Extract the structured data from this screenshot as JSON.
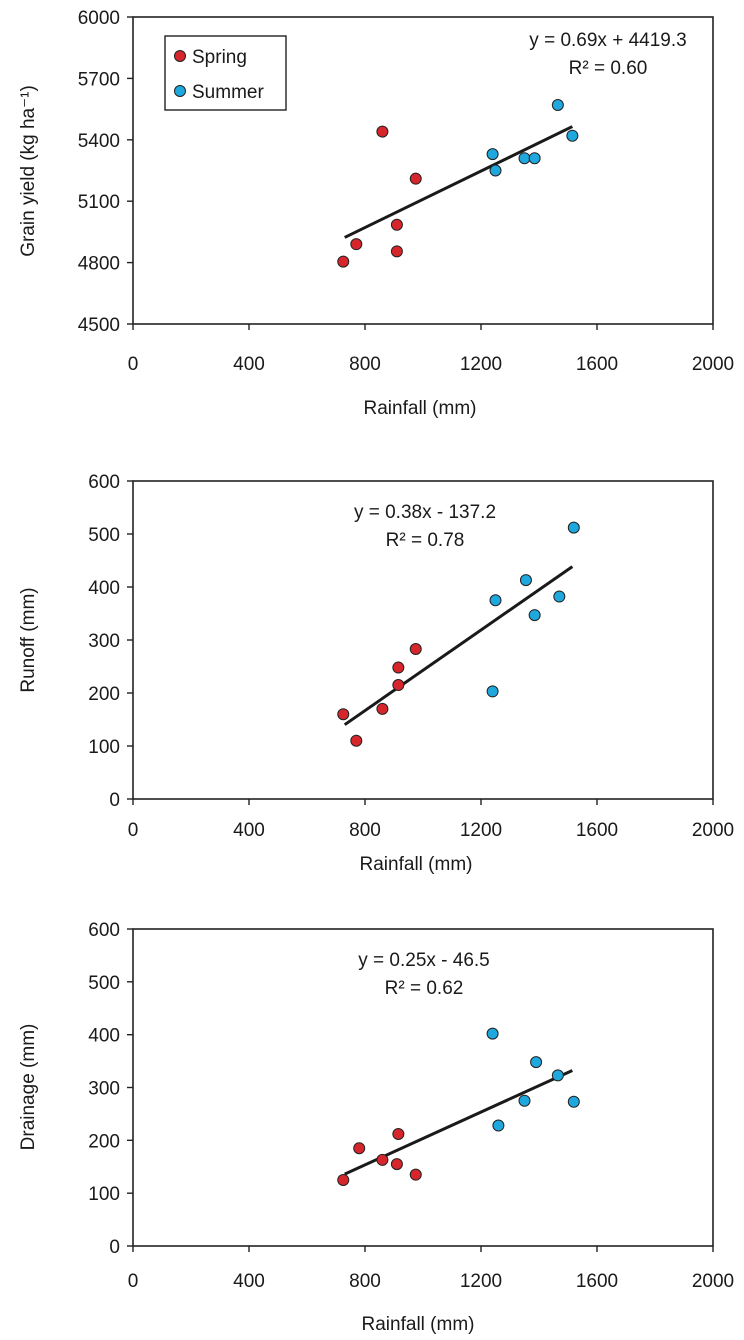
{
  "colors": {
    "spring": "#d7262b",
    "summer": "#1fa8de"
  },
  "legend": {
    "spring": "Spring",
    "summer": "Summer"
  },
  "chart_data": [
    {
      "type": "scatter",
      "xlabel": "Rainfall (mm)",
      "ylabel": "Grain yield (kg ha⁻¹)",
      "xlim": [
        0,
        2000
      ],
      "ylim": [
        4500,
        6000
      ],
      "xticks": [
        "0",
        "400",
        "800",
        "1200",
        "1600",
        "2000"
      ],
      "yticks": [
        "4500",
        "4800",
        "5100",
        "5400",
        "5700",
        "6000"
      ],
      "equation": "y = 0.69x + 4419.3",
      "r2": "R² = 0.60",
      "trend": {
        "slope": 0.69,
        "intercept": 4419.3,
        "x_range": [
          730,
          1515
        ]
      },
      "series": [
        {
          "name": "Spring",
          "x": [
            725,
            770,
            860,
            910,
            910,
            975
          ],
          "y": [
            4805,
            4890,
            5440,
            4985,
            4855,
            5210
          ]
        },
        {
          "name": "Summer",
          "x": [
            1240,
            1250,
            1350,
            1385,
            1465,
            1515
          ],
          "y": [
            5330,
            5250,
            5310,
            5310,
            5570,
            5420
          ]
        }
      ]
    },
    {
      "type": "scatter",
      "xlabel": "Rainfall (mm)",
      "ylabel": "Runoff  (mm)",
      "xlim": [
        0,
        2000
      ],
      "ylim": [
        0,
        600
      ],
      "xticks": [
        "0",
        "400",
        "800",
        "1200",
        "1600",
        "2000"
      ],
      "yticks": [
        "0",
        "100",
        "200",
        "300",
        "400",
        "500",
        "600"
      ],
      "equation": "y = 0.38x - 137.2",
      "r2": "R² = 0.78",
      "trend": {
        "slope": 0.38,
        "intercept": -137.2,
        "x_range": [
          730,
          1515
        ]
      },
      "series": [
        {
          "name": "Spring",
          "x": [
            725,
            770,
            860,
            915,
            915,
            975
          ],
          "y": [
            160,
            110,
            170,
            215,
            248,
            283
          ]
        },
        {
          "name": "Summer",
          "x": [
            1240,
            1250,
            1355,
            1385,
            1470,
            1520
          ],
          "y": [
            203,
            375,
            413,
            347,
            382,
            512
          ]
        }
      ]
    },
    {
      "type": "scatter",
      "xlabel": "Rainfall (mm)",
      "ylabel": "Drainage (mm)",
      "xlim": [
        0,
        2000
      ],
      "ylim": [
        0,
        600
      ],
      "xticks": [
        "0",
        "400",
        "800",
        "1200",
        "1600",
        "2000"
      ],
      "yticks": [
        "0",
        "100",
        "200",
        "300",
        "400",
        "500",
        "600"
      ],
      "equation": "y = 0.25x - 46.5",
      "r2": "R² = 0.62",
      "trend": {
        "slope": 0.25,
        "intercept": -46.5,
        "x_range": [
          730,
          1515
        ]
      },
      "series": [
        {
          "name": "Spring",
          "x": [
            725,
            780,
            860,
            910,
            915,
            975
          ],
          "y": [
            125,
            185,
            163,
            155,
            212,
            135
          ]
        },
        {
          "name": "Summer",
          "x": [
            1240,
            1260,
            1350,
            1390,
            1465,
            1520
          ],
          "y": [
            402,
            228,
            275,
            348,
            323,
            273
          ]
        }
      ]
    }
  ]
}
